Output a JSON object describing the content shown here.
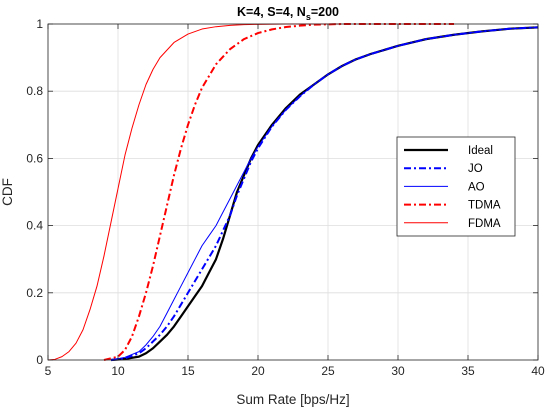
{
  "chart_data": {
    "type": "line",
    "title_main": "K=4, S=4, N",
    "title_sub": "s",
    "title_tail": "=200",
    "xlabel": "Sum Rate [bps/Hz]",
    "ylabel": "CDF",
    "xlim": [
      5,
      40
    ],
    "ylim": [
      0,
      1
    ],
    "xticks": [
      5,
      10,
      15,
      20,
      25,
      30,
      35,
      40
    ],
    "yticks": [
      0,
      0.2,
      0.4,
      0.6,
      0.8,
      1
    ],
    "xtick_labels": [
      "5",
      "10",
      "15",
      "20",
      "25",
      "30",
      "35",
      "40"
    ],
    "ytick_labels": [
      "0",
      "0.2",
      "0.4",
      "0.6",
      "0.8",
      "1"
    ],
    "grid": true,
    "legend_position": "center-right",
    "series": [
      {
        "name": "Ideal",
        "color": "#000000",
        "dash": "solid",
        "width": 2.2,
        "x": [
          9.5,
          10.5,
          11.5,
          12,
          12.5,
          13,
          13.5,
          14,
          14.5,
          15,
          15.5,
          16,
          16.5,
          17,
          17.5,
          18,
          18.5,
          19,
          19.5,
          20,
          21,
          22,
          23,
          24,
          25,
          26,
          27,
          28,
          30,
          32,
          34,
          36,
          38,
          40
        ],
        "y": [
          0,
          0.003,
          0.01,
          0.02,
          0.035,
          0.055,
          0.075,
          0.1,
          0.13,
          0.16,
          0.19,
          0.22,
          0.26,
          0.3,
          0.36,
          0.43,
          0.5,
          0.55,
          0.6,
          0.64,
          0.7,
          0.75,
          0.79,
          0.82,
          0.85,
          0.875,
          0.895,
          0.91,
          0.935,
          0.955,
          0.968,
          0.978,
          0.986,
          0.99
        ]
      },
      {
        "name": "JO",
        "color": "#0000ff",
        "dash": "dashdot",
        "width": 2,
        "x": [
          9.5,
          10.5,
          11.5,
          12,
          12.5,
          13,
          13.5,
          14,
          14.5,
          15,
          15.5,
          16,
          16.5,
          17,
          17.5,
          18,
          18.5,
          19,
          19.5,
          20,
          21,
          22,
          23,
          24,
          25,
          26,
          27,
          28,
          30,
          32,
          34,
          36,
          38,
          40
        ],
        "y": [
          0,
          0.005,
          0.02,
          0.035,
          0.055,
          0.075,
          0.1,
          0.13,
          0.165,
          0.2,
          0.235,
          0.27,
          0.305,
          0.34,
          0.385,
          0.43,
          0.49,
          0.54,
          0.59,
          0.63,
          0.695,
          0.745,
          0.785,
          0.82,
          0.85,
          0.875,
          0.895,
          0.91,
          0.935,
          0.955,
          0.968,
          0.978,
          0.986,
          0.99
        ]
      },
      {
        "name": "AO",
        "color": "#0000ff",
        "dash": "solid",
        "width": 1,
        "x": [
          9.5,
          10.5,
          11.5,
          12,
          12.5,
          13,
          13.5,
          14,
          14.5,
          15,
          15.5,
          16,
          16.5,
          17,
          17.5,
          18,
          18.5,
          19,
          19.5,
          20,
          21,
          22,
          23,
          24,
          25,
          26,
          27,
          28,
          30,
          32,
          34,
          36,
          38,
          40
        ],
        "y": [
          0,
          0.008,
          0.025,
          0.045,
          0.07,
          0.1,
          0.14,
          0.18,
          0.22,
          0.26,
          0.3,
          0.34,
          0.37,
          0.4,
          0.44,
          0.48,
          0.52,
          0.56,
          0.6,
          0.635,
          0.695,
          0.745,
          0.785,
          0.82,
          0.85,
          0.875,
          0.895,
          0.91,
          0.935,
          0.955,
          0.968,
          0.978,
          0.986,
          0.99
        ]
      },
      {
        "name": "TDMA",
        "color": "#ff0000",
        "dash": "dashdot",
        "width": 2,
        "x": [
          9,
          10,
          10.5,
          11,
          11.5,
          12,
          12.5,
          13,
          13.5,
          14,
          14.5,
          15,
          15.5,
          16,
          17,
          18,
          19,
          20,
          21,
          22,
          23,
          24,
          25,
          26,
          28,
          30,
          32,
          34
        ],
        "y": [
          0,
          0.01,
          0.03,
          0.07,
          0.13,
          0.2,
          0.28,
          0.37,
          0.46,
          0.55,
          0.63,
          0.7,
          0.76,
          0.81,
          0.88,
          0.925,
          0.955,
          0.973,
          0.984,
          0.991,
          0.995,
          0.998,
          0.999,
          1,
          1,
          1,
          1,
          1
        ]
      },
      {
        "name": "FDMA",
        "color": "#ff0000",
        "dash": "solid",
        "width": 1,
        "x": [
          5,
          5.5,
          6,
          6.5,
          7,
          7.5,
          8,
          8.5,
          9,
          9.5,
          10,
          10.5,
          11,
          11.5,
          12,
          12.5,
          13,
          14,
          15,
          16,
          17,
          18,
          19,
          20,
          22,
          24,
          26
        ],
        "y": [
          0,
          0.002,
          0.01,
          0.025,
          0.05,
          0.09,
          0.15,
          0.22,
          0.31,
          0.41,
          0.51,
          0.61,
          0.69,
          0.76,
          0.82,
          0.865,
          0.9,
          0.945,
          0.97,
          0.985,
          0.992,
          0.996,
          0.998,
          0.999,
          1,
          1,
          1
        ]
      }
    ]
  }
}
